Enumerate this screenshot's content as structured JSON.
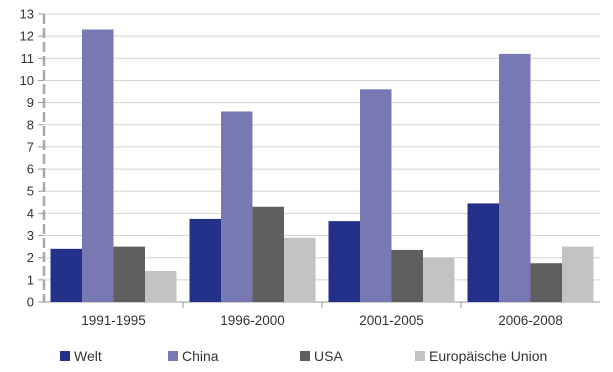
{
  "chart_data": {
    "type": "bar",
    "categories": [
      "1991-1995",
      "1996-2000",
      "2001-2005",
      "2006-2008"
    ],
    "series": [
      {
        "name": "Welt",
        "color": "#24318a",
        "values": [
          2.4,
          3.75,
          3.65,
          4.45
        ]
      },
      {
        "name": "China",
        "color": "#7878b2",
        "values": [
          12.3,
          8.6,
          9.6,
          11.2
        ]
      },
      {
        "name": "USA",
        "color": "#5f5f5f",
        "values": [
          2.5,
          4.3,
          2.35,
          1.75
        ]
      },
      {
        "name": "Europäische Union",
        "color": "#c2c2c2",
        "values": [
          1.4,
          2.9,
          2.0,
          2.5
        ]
      }
    ],
    "yticks": [
      "0",
      "1",
      "2",
      "3",
      "4",
      "5",
      "6",
      "7",
      "8",
      "9",
      "10",
      "11",
      "12",
      "13"
    ],
    "ylim": [
      0,
      13
    ],
    "grid": true,
    "legend_position": "bottom"
  }
}
